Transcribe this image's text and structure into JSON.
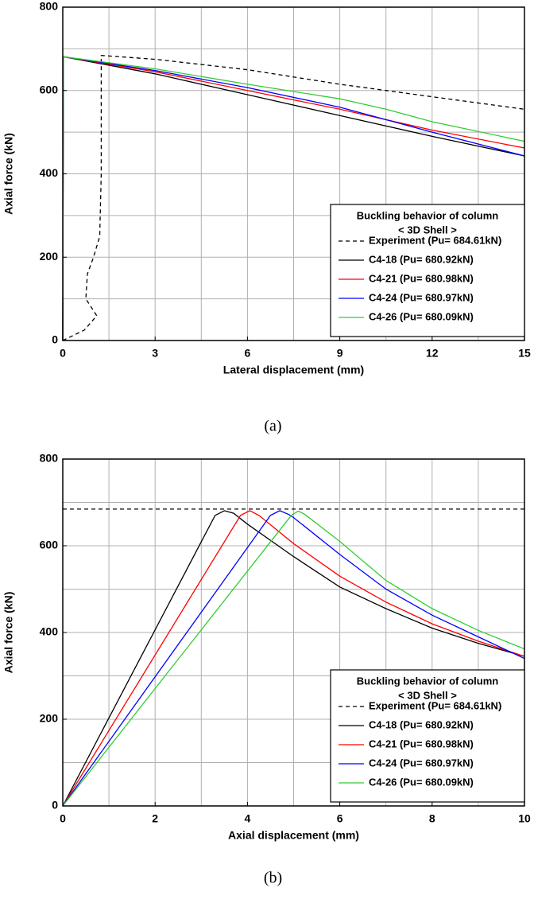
{
  "chart_data": [
    {
      "type": "line",
      "xlabel": "Lateral displacement (mm)",
      "ylabel": "Axial force (kN)",
      "caption": "(a)",
      "xlim": [
        0,
        15
      ],
      "ylim": [
        0,
        800
      ],
      "xticks": [
        0,
        3,
        6,
        9,
        12,
        15
      ],
      "yticks": [
        0,
        200,
        400,
        600,
        800
      ],
      "xminor": [
        1.5,
        4.5,
        7.5,
        10.5,
        13.5
      ],
      "yminor": [
        100,
        300,
        500,
        700
      ],
      "grid": true,
      "legend_title": [
        "Buckling behavior of column",
        "< 3D Shell >"
      ],
      "legend": "lower right",
      "series": [
        {
          "name": "Experiment (Pu= 684.61kN)",
          "color": "#000000",
          "style": "dashed",
          "x": [
            0,
            0.7,
            1.05,
            1.1,
            0.75,
            0.8,
            1.0,
            1.2,
            1.25,
            1.25,
            1.3,
            3,
            6,
            9,
            12,
            15
          ],
          "values": [
            0,
            25,
            55,
            60,
            100,
            160,
            200,
            250,
            400,
            684,
            684,
            675,
            650,
            615,
            585,
            555
          ]
        },
        {
          "name": "C4-18 (Pu= 680.92kN)",
          "color": "#000000",
          "style": "solid",
          "x": [
            0,
            0.02,
            3,
            6,
            9,
            12,
            15
          ],
          "values": [
            0,
            681,
            640,
            590,
            540,
            490,
            443
          ]
        },
        {
          "name": "C4-21 (Pu= 680.98kN)",
          "color": "#ff0000",
          "style": "solid",
          "x": [
            0,
            0.02,
            3,
            6,
            9,
            12,
            15
          ],
          "values": [
            0,
            681,
            645,
            600,
            555,
            505,
            462
          ]
        },
        {
          "name": "C4-24 (Pu= 680.97kN)",
          "color": "#0000ff",
          "style": "solid",
          "x": [
            0,
            0.02,
            3,
            6,
            9,
            12,
            15
          ],
          "values": [
            0,
            681,
            648,
            607,
            560,
            500,
            443
          ]
        },
        {
          "name": "C4-26 (Pu= 680.09kN)",
          "color": "#33cc33",
          "style": "solid",
          "x": [
            0,
            0.02,
            3,
            6,
            9,
            10.5,
            12,
            15
          ],
          "values": [
            0,
            681,
            652,
            615,
            580,
            555,
            525,
            478
          ]
        }
      ]
    },
    {
      "type": "line",
      "xlabel": "Axial displacement (mm)",
      "ylabel": "Axial force (kN)",
      "caption": "(b)",
      "xlim": [
        0,
        10
      ],
      "ylim": [
        0,
        800
      ],
      "xticks": [
        0,
        2,
        4,
        6,
        8,
        10
      ],
      "yticks": [
        0,
        200,
        400,
        600,
        800
      ],
      "xminor": [
        1,
        3,
        5,
        7,
        9
      ],
      "yminor": [
        100,
        300,
        500,
        700
      ],
      "grid": true,
      "legend_title": [
        "Buckling behavior of column",
        "< 3D Shell >"
      ],
      "legend": "lower right",
      "series": [
        {
          "name": "Experiment (Pu= 684.61kN)",
          "color": "#000000",
          "style": "dashed",
          "x": [
            0,
            10
          ],
          "values": [
            684.61,
            684.61
          ]
        },
        {
          "name": "C4-18 (Pu= 680.92kN)",
          "color": "#000000",
          "style": "solid",
          "x": [
            0,
            3.3,
            3.5,
            3.7,
            4,
            5,
            6,
            7,
            8,
            9,
            10
          ],
          "values": [
            0,
            670,
            681,
            675,
            650,
            575,
            505,
            455,
            410,
            375,
            345
          ]
        },
        {
          "name": "C4-21 (Pu= 680.98kN)",
          "color": "#ff0000",
          "style": "solid",
          "x": [
            0,
            3.85,
            4.05,
            4.25,
            5,
            6,
            7,
            8,
            9,
            10
          ],
          "values": [
            0,
            670,
            681,
            670,
            605,
            530,
            470,
            420,
            380,
            345
          ]
        },
        {
          "name": "C4-24 (Pu= 680.97kN)",
          "color": "#0000ff",
          "style": "solid",
          "x": [
            0,
            4.5,
            4.7,
            4.9,
            5,
            6,
            7,
            8,
            9,
            10
          ],
          "values": [
            0,
            670,
            681,
            672,
            665,
            580,
            500,
            440,
            390,
            340
          ]
        },
        {
          "name": "C4-26 (Pu= 680.09kN)",
          "color": "#33cc33",
          "style": "solid",
          "x": [
            0,
            4.95,
            5.1,
            5.25,
            6,
            7,
            8,
            9,
            10
          ],
          "values": [
            0,
            670,
            680,
            672,
            610,
            520,
            455,
            405,
            362
          ]
        }
      ]
    }
  ]
}
